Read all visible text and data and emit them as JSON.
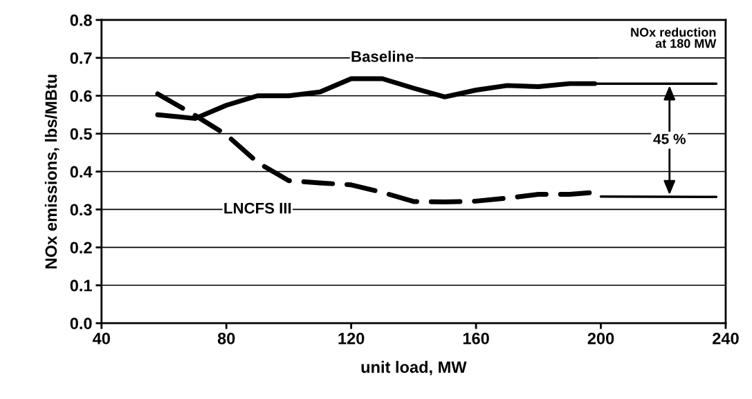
{
  "chart_data": {
    "type": "line",
    "xlabel": "unit load, MW",
    "ylabel": "NOx emissions, lbs/MBtu",
    "xlim": [
      40,
      240
    ],
    "xticks": [
      40,
      80,
      120,
      160,
      200,
      240
    ],
    "ylim": [
      0,
      0.8
    ],
    "yticks": [
      {
        "value": 0,
        "label": "0.0"
      },
      0.1,
      0.2,
      0.3,
      0.4,
      0.5,
      0.6,
      0.7,
      0.8
    ],
    "grid": "y",
    "marker": "none",
    "series": [
      {
        "name": "Baseline",
        "color": "#000000",
        "line_style": "solid",
        "x": [
          58,
          70,
          80,
          90,
          100,
          110,
          120,
          130,
          140,
          150,
          160,
          170,
          180,
          190,
          198
        ],
        "values": [
          0.55,
          0.54,
          0.575,
          0.6,
          0.6,
          0.61,
          0.645,
          0.645,
          0.62,
          0.597,
          0.615,
          0.627,
          0.624,
          0.632,
          0.632
        ]
      },
      {
        "name": "LNCFS III",
        "color": "#000000",
        "line_style": "dashed",
        "x": [
          58,
          70,
          80,
          90,
          100,
          110,
          120,
          130,
          140,
          150,
          160,
          170,
          180,
          190,
          198
        ],
        "values": [
          0.605,
          0.548,
          0.497,
          0.424,
          0.376,
          0.37,
          0.365,
          0.345,
          0.321,
          0.32,
          0.322,
          0.33,
          0.34,
          0.34,
          0.345
        ]
      },
      {
        "color": "#000000",
        "line_style": "solid",
        "x": [
          198,
          237
        ],
        "values": [
          0.632,
          0.632
        ]
      },
      {
        "color": "#000000",
        "line_style": "solid",
        "x": [
          200,
          237
        ],
        "values": [
          0.334,
          0.333
        ]
      }
    ],
    "annotations": [
      "NOx reduction\nat 180 MW",
      "45 %"
    ]
  }
}
